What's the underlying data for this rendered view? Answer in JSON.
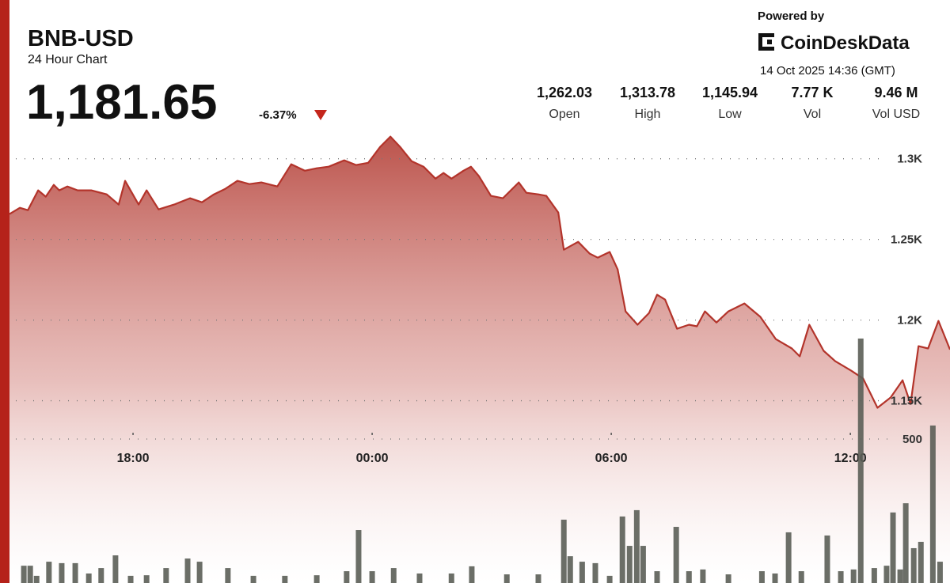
{
  "header": {
    "symbol": "BNB-USD",
    "subtitle": "24 Hour Chart",
    "price": "1,181.65",
    "change": "-6.37%",
    "powered_by": "Powered by",
    "brand": "CoinDeskData",
    "timestamp": "14 Oct 2025 14:36 (GMT)"
  },
  "stats": [
    {
      "value": "1,262.03",
      "label": "Open"
    },
    {
      "value": "1,313.78",
      "label": "High"
    },
    {
      "value": "1,145.94",
      "label": "Low"
    },
    {
      "value": "7.77 K",
      "label": "Vol"
    },
    {
      "value": "9.46 M",
      "label": "Vol USD"
    }
  ],
  "chart_data": {
    "type": "line",
    "xlim": [
      14.9,
      38.5
    ],
    "xticks": [
      {
        "value": 18,
        "label": "18:00"
      },
      {
        "value": 24,
        "label": "00:00"
      },
      {
        "value": 30,
        "label": "06:00"
      },
      {
        "value": 36,
        "label": "12:00"
      }
    ],
    "ylim": [
      1037,
      1317
    ],
    "yticks": [
      {
        "value": 1150,
        "label": "1.15K"
      },
      {
        "value": 1200,
        "label": "1.2K"
      },
      {
        "value": 1250,
        "label": "1.25K"
      },
      {
        "value": 1300,
        "label": "1.3K"
      }
    ],
    "y2lim": [
      0,
      1000
    ],
    "y2ticks": [
      500
    ],
    "grid": true,
    "series": [
      {
        "color": "#b3342b",
        "x": [
          14.9,
          15.16,
          15.36,
          15.62,
          15.81,
          16.01,
          16.15,
          16.35,
          16.61,
          16.95,
          17.34,
          17.64,
          17.8,
          18.14,
          18.34,
          18.64,
          19.03,
          19.43,
          19.73,
          20.03,
          20.32,
          20.62,
          20.92,
          21.22,
          21.62,
          21.97,
          22.31,
          22.61,
          22.91,
          23.3,
          23.6,
          23.9,
          24.2,
          24.46,
          24.7,
          24.99,
          25.29,
          25.59,
          25.79,
          25.99,
          26.29,
          26.48,
          26.68,
          26.98,
          27.28,
          27.68,
          27.87,
          28.17,
          28.37,
          28.67,
          28.81,
          29.17,
          29.46,
          29.66,
          29.96,
          30.16,
          30.36,
          30.66,
          30.95,
          31.15,
          31.35,
          31.65,
          31.95,
          32.15,
          32.35,
          32.64,
          32.94,
          33.34,
          33.74,
          34.13,
          34.53,
          34.73,
          34.97,
          35.33,
          35.62,
          36.02,
          36.32,
          36.68,
          37.01,
          37.31,
          37.51,
          37.71,
          37.95,
          38.21,
          38.5
        ],
        "values": [
          1265.7,
          1269.6,
          1268.1,
          1280.4,
          1276.5,
          1283.8,
          1280.4,
          1282.8,
          1280.4,
          1280.4,
          1277.9,
          1271.6,
          1286.3,
          1271.6,
          1280.4,
          1268.6,
          1271.6,
          1275.5,
          1273.0,
          1277.9,
          1281.4,
          1286.3,
          1284.3,
          1285.3,
          1282.8,
          1296.6,
          1292.6,
          1294.1,
          1295.1,
          1299.0,
          1296.1,
          1297.5,
          1307.4,
          1313.7,
          1307.4,
          1298.5,
          1295.1,
          1287.7,
          1291.2,
          1287.7,
          1292.6,
          1295.1,
          1289.2,
          1277.0,
          1275.5,
          1285.3,
          1278.9,
          1277.9,
          1277.0,
          1266.7,
          1243.6,
          1248.5,
          1241.2,
          1238.7,
          1242.2,
          1231.4,
          1205.4,
          1197.1,
          1204.4,
          1215.7,
          1212.7,
          1194.6,
          1197.1,
          1196.1,
          1205.4,
          1198.5,
          1205.4,
          1210.3,
          1202.0,
          1188.2,
          1182.4,
          1177.5,
          1197.1,
          1180.9,
          1174.5,
          1168.6,
          1163.7,
          1145.6,
          1152.0,
          1162.7,
          1148.0,
          1183.8,
          1182.4,
          1199.5,
          1181.7
        ]
      },
      {
        "type": "bar",
        "axis": "y2",
        "color": "#5b5e56",
        "x": [
          15.26,
          15.42,
          15.58,
          15.89,
          16.21,
          16.55,
          16.89,
          17.2,
          17.56,
          17.94,
          18.34,
          18.83,
          19.37,
          19.67,
          20.38,
          21.02,
          21.81,
          22.61,
          23.36,
          23.66,
          24.0,
          24.54,
          25.19,
          25.99,
          26.5,
          27.38,
          28.17,
          28.81,
          28.97,
          29.27,
          29.6,
          29.96,
          30.28,
          30.46,
          30.64,
          30.8,
          31.15,
          31.63,
          31.95,
          32.3,
          32.94,
          33.78,
          34.11,
          34.45,
          34.77,
          35.42,
          35.76,
          36.08,
          36.26,
          36.6,
          36.91,
          37.07,
          37.25,
          37.39,
          37.59,
          37.77,
          38.07,
          38.25
        ],
        "values": [
          60,
          60,
          25,
          74,
          69,
          69,
          33,
          52,
          96,
          25,
          27,
          52,
          85,
          74,
          52,
          25,
          25,
          27,
          41,
          184,
          41,
          52,
          33,
          33,
          58,
          30,
          30,
          220,
          93,
          74,
          69,
          25,
          231,
          129,
          253,
          129,
          41,
          195,
          41,
          47,
          30,
          41,
          33,
          176,
          41,
          165,
          41,
          47,
          849,
          52,
          60,
          245,
          47,
          277,
          121,
          143,
          547,
          74
        ]
      }
    ]
  }
}
